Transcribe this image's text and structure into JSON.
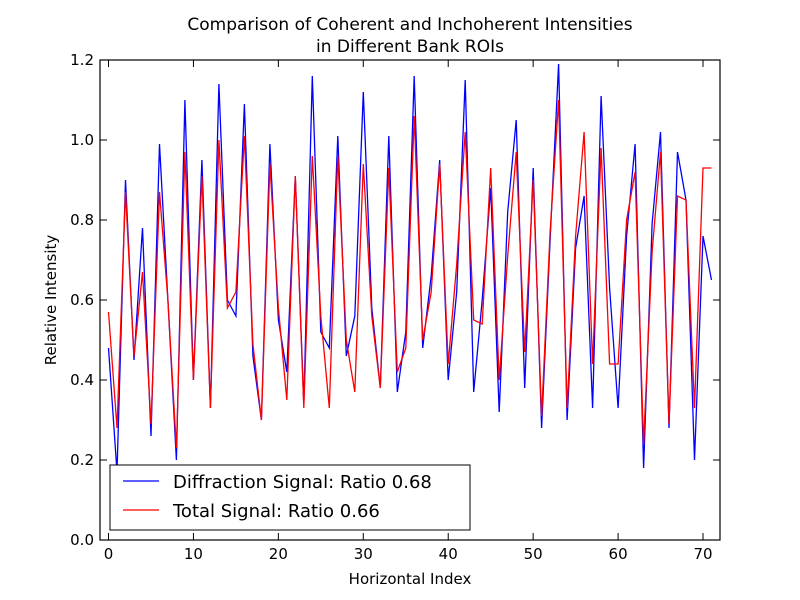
{
  "chart_data": {
    "type": "line",
    "title": [
      "Comparison of Coherent and Inchoherent Intensities",
      "in Different Bank ROIs"
    ],
    "xlabel": "Horizontal Index",
    "ylabel": "Relative Intensity",
    "xlim": [
      -1,
      72
    ],
    "ylim": [
      0.0,
      1.2
    ],
    "xticks": [
      0,
      10,
      20,
      30,
      40,
      50,
      60,
      70
    ],
    "xtick_labels": [
      "0",
      "10",
      "20",
      "30",
      "40",
      "50",
      "60",
      "70"
    ],
    "yticks": [
      0.0,
      0.2,
      0.4,
      0.6,
      0.8,
      1.0,
      1.2
    ],
    "ytick_labels": [
      "0.0",
      "0.2",
      "0.4",
      "0.6",
      "0.8",
      "1.0",
      "1.2"
    ],
    "legend_position": "lower-left",
    "x": [
      0,
      1,
      2,
      3,
      4,
      5,
      6,
      7,
      8,
      9,
      10,
      11,
      12,
      13,
      14,
      15,
      16,
      17,
      18,
      19,
      20,
      21,
      22,
      23,
      24,
      25,
      26,
      27,
      28,
      29,
      30,
      31,
      32,
      33,
      34,
      35,
      36,
      37,
      38,
      39,
      40,
      41,
      42,
      43,
      44,
      45,
      46,
      47,
      48,
      49,
      50,
      51,
      52,
      53,
      54,
      55,
      56,
      57,
      58,
      59,
      60,
      61,
      62,
      63,
      64,
      65,
      66,
      67,
      68,
      69,
      70,
      71
    ],
    "series": [
      {
        "name": "Diffraction Signal: Ratio 0.68",
        "color": "#0000ff",
        "values": [
          0.48,
          0.17,
          0.9,
          0.45,
          0.78,
          0.26,
          0.99,
          0.6,
          0.2,
          1.1,
          0.4,
          0.95,
          0.33,
          1.14,
          0.6,
          0.56,
          1.09,
          0.46,
          0.3,
          0.99,
          0.55,
          0.42,
          0.91,
          0.34,
          1.16,
          0.52,
          0.48,
          1.01,
          0.46,
          0.56,
          1.12,
          0.58,
          0.38,
          1.01,
          0.37,
          0.52,
          1.16,
          0.48,
          0.66,
          0.95,
          0.4,
          0.62,
          1.15,
          0.37,
          0.6,
          0.88,
          0.32,
          0.82,
          1.05,
          0.38,
          0.93,
          0.28,
          0.75,
          1.19,
          0.3,
          0.73,
          0.86,
          0.33,
          1.11,
          0.63,
          0.33,
          0.76,
          0.99,
          0.18,
          0.79,
          1.02,
          0.28,
          0.97,
          0.85,
          0.2,
          0.76,
          0.65
        ]
      },
      {
        "name": "Total Signal: Ratio 0.66",
        "color": "#ff0000",
        "values": [
          0.57,
          0.28,
          0.87,
          0.46,
          0.67,
          0.29,
          0.87,
          0.6,
          0.23,
          0.97,
          0.4,
          0.91,
          0.33,
          1.0,
          0.58,
          0.62,
          1.01,
          0.49,
          0.3,
          0.94,
          0.58,
          0.35,
          0.91,
          0.33,
          0.96,
          0.56,
          0.33,
          0.96,
          0.5,
          0.37,
          0.94,
          0.56,
          0.38,
          0.93,
          0.42,
          0.48,
          1.06,
          0.5,
          0.62,
          0.94,
          0.44,
          0.69,
          1.02,
          0.55,
          0.54,
          0.93,
          0.4,
          0.71,
          0.97,
          0.47,
          0.9,
          0.31,
          0.77,
          1.1,
          0.33,
          0.76,
          1.02,
          0.44,
          0.98,
          0.44,
          0.44,
          0.8,
          0.92,
          0.24,
          0.72,
          0.97,
          0.29,
          0.86,
          0.85,
          0.33,
          0.93,
          0.93
        ]
      }
    ]
  }
}
